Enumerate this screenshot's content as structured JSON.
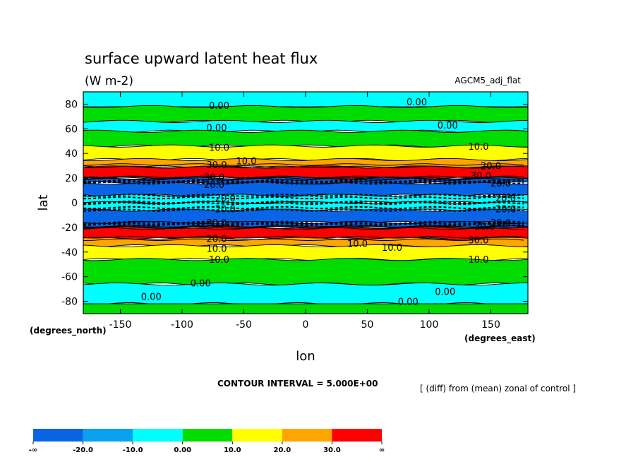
{
  "chart_data": {
    "type": "heatmap",
    "title": "surface upward latent heat flux",
    "subtitle": "(W m-2)",
    "experiment": "AGCM5_adj_flat",
    "xlabel": "lon",
    "ylabel": "lat",
    "x_units": "(degrees_east)",
    "y_units": "(degrees_north)",
    "xlim": [
      -180,
      180
    ],
    "ylim": [
      -90,
      90
    ],
    "x_ticks": [
      -150,
      -100,
      -50,
      0,
      50,
      100,
      150
    ],
    "y_ticks": [
      80,
      60,
      40,
      20,
      0,
      -20,
      -40,
      -60,
      -80
    ],
    "contour_interval_text": "CONTOUR INTERVAL = 5.000E+00",
    "description_text": "[ (diff) from (mean) zonal of control ]",
    "legend": {
      "levels": [
        "-∞",
        "-20.0",
        "-10.0",
        "0.00",
        "10.0",
        "20.0",
        "30.0",
        "∞"
      ],
      "colors": [
        "#0a64e6",
        "#0aa0f0",
        "#00ffff",
        "#00dc00",
        "#ffff00",
        "#ffa500",
        "#ff0000"
      ]
    },
    "bands": [
      {
        "lat_min": 78,
        "lat_max": 90,
        "value_range": [
          -10,
          0
        ]
      },
      {
        "lat_min": 66,
        "lat_max": 78,
        "value_range": [
          0,
          10
        ]
      },
      {
        "lat_min": 58,
        "lat_max": 66,
        "value_range": [
          -10,
          0
        ]
      },
      {
        "lat_min": 46,
        "lat_max": 58,
        "value_range": [
          0,
          10
        ]
      },
      {
        "lat_min": 35,
        "lat_max": 46,
        "value_range": [
          10,
          20
        ]
      },
      {
        "lat_min": 29,
        "lat_max": 35,
        "value_range": [
          20,
          30
        ]
      },
      {
        "lat_min": 20,
        "lat_max": 29,
        "value_range": [
          30,
          100
        ]
      },
      {
        "lat_min": 16,
        "lat_max": 20,
        "value_range": [
          -100,
          -20
        ]
      },
      {
        "lat_min": 6,
        "lat_max": 16,
        "value_range": [
          -100,
          -20
        ]
      },
      {
        "lat_min": 0,
        "lat_max": 6,
        "value_range": [
          -10,
          0
        ]
      },
      {
        "lat_min": -6,
        "lat_max": 0,
        "value_range": [
          -10,
          0
        ]
      },
      {
        "lat_min": -16,
        "lat_max": -6,
        "value_range": [
          -100,
          -20
        ]
      },
      {
        "lat_min": -20,
        "lat_max": -16,
        "value_range": [
          -100,
          -20
        ]
      },
      {
        "lat_min": -29,
        "lat_max": -20,
        "value_range": [
          30,
          100
        ]
      },
      {
        "lat_min": -35,
        "lat_max": -29,
        "value_range": [
          20,
          30
        ]
      },
      {
        "lat_min": -46,
        "lat_max": -35,
        "value_range": [
          10,
          20
        ]
      },
      {
        "lat_min": -66,
        "lat_max": -46,
        "value_range": [
          0,
          10
        ]
      },
      {
        "lat_min": -82,
        "lat_max": -66,
        "value_range": [
          -10,
          0
        ]
      },
      {
        "lat_min": -90,
        "lat_max": -82,
        "value_range": [
          0,
          10
        ]
      }
    ],
    "contour_labels": [
      {
        "text": "0.00",
        "lon": -70,
        "lat": 79
      },
      {
        "text": "0.00",
        "lon": 90,
        "lat": 82
      },
      {
        "text": "0.00",
        "lon": -72,
        "lat": 61
      },
      {
        "text": "0.00",
        "lon": 115,
        "lat": 63
      },
      {
        "text": "10.0",
        "lon": -70,
        "lat": 45
      },
      {
        "text": "10.0",
        "lon": 140,
        "lat": 46
      },
      {
        "text": "30.0",
        "lon": -72,
        "lat": 31
      },
      {
        "text": "10.0",
        "lon": -48,
        "lat": 34
      },
      {
        "text": "20.0",
        "lon": 150,
        "lat": 30
      },
      {
        "text": "30.0",
        "lon": -74,
        "lat": 21
      },
      {
        "text": "20.0",
        "lon": -74,
        "lat": 15
      },
      {
        "text": "30.0",
        "lon": 142,
        "lat": 22
      },
      {
        "text": "20.0",
        "lon": 158,
        "lat": 16
      },
      {
        "text": "20.0",
        "lon": -65,
        "lat": 4
      },
      {
        "text": "20.0",
        "lon": -65,
        "lat": -5
      },
      {
        "text": "20.0",
        "lon": 162,
        "lat": 4
      },
      {
        "text": "20.0",
        "lon": 162,
        "lat": -5
      },
      {
        "text": "30.0",
        "lon": -72,
        "lat": -16
      },
      {
        "text": "20.0",
        "lon": 158,
        "lat": -16
      },
      {
        "text": "30.0",
        "lon": 145,
        "lat": -19
      },
      {
        "text": "20.0",
        "lon": -72,
        "lat": -29
      },
      {
        "text": "30.0",
        "lon": 140,
        "lat": -30
      },
      {
        "text": "10.0",
        "lon": -72,
        "lat": -37
      },
      {
        "text": "10.0",
        "lon": 42,
        "lat": -33
      },
      {
        "text": "10.0",
        "lon": 70,
        "lat": -36
      },
      {
        "text": "10.0",
        "lon": -70,
        "lat": -46
      },
      {
        "text": "10.0",
        "lon": 140,
        "lat": -46
      },
      {
        "text": "0.00",
        "lon": -85,
        "lat": -65
      },
      {
        "text": "0.00",
        "lon": 113,
        "lat": -72
      },
      {
        "text": "0.00",
        "lon": -125,
        "lat": -76
      },
      {
        "text": "0.00",
        "lon": 83,
        "lat": -80
      }
    ]
  }
}
